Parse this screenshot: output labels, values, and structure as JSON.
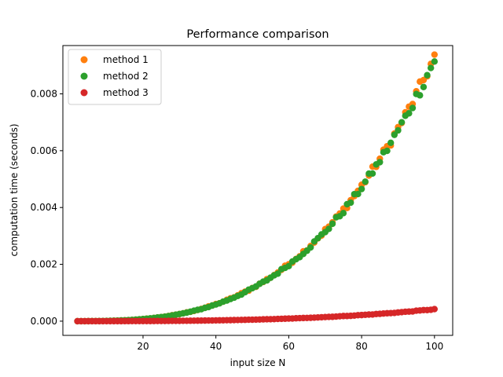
{
  "chart_data": {
    "type": "scatter",
    "title": "Performance comparison",
    "xlabel": "input size N",
    "ylabel": "computation time (seconds)",
    "xlim": [
      -2,
      105
    ],
    "ylim": [
      -0.0005,
      0.0097
    ],
    "xticks": [
      {
        "value": 20,
        "label": "20"
      },
      {
        "value": 40,
        "label": "40"
      },
      {
        "value": 60,
        "label": "60"
      },
      {
        "value": 80,
        "label": "80"
      },
      {
        "value": 100,
        "label": "100"
      }
    ],
    "yticks": [
      {
        "value": 0,
        "label": "0.000"
      },
      {
        "value": 0.002,
        "label": "0.002"
      },
      {
        "value": 0.004,
        "label": "0.004"
      },
      {
        "value": 0.006,
        "label": "0.006"
      },
      {
        "value": 0.008,
        "label": "0.008"
      }
    ],
    "legend_position": "top-left",
    "x_range": [
      2,
      100
    ],
    "series": [
      {
        "name": "method 1",
        "color": "#ff7f0e",
        "coef": 9.3e-09,
        "power": 3
      },
      {
        "name": "method 2",
        "color": "#2ca02c",
        "coef": 9.2e-09,
        "power": 3
      },
      {
        "name": "method 3",
        "color": "#d62728",
        "coef": 4.2e-10,
        "power": 3
      }
    ]
  }
}
